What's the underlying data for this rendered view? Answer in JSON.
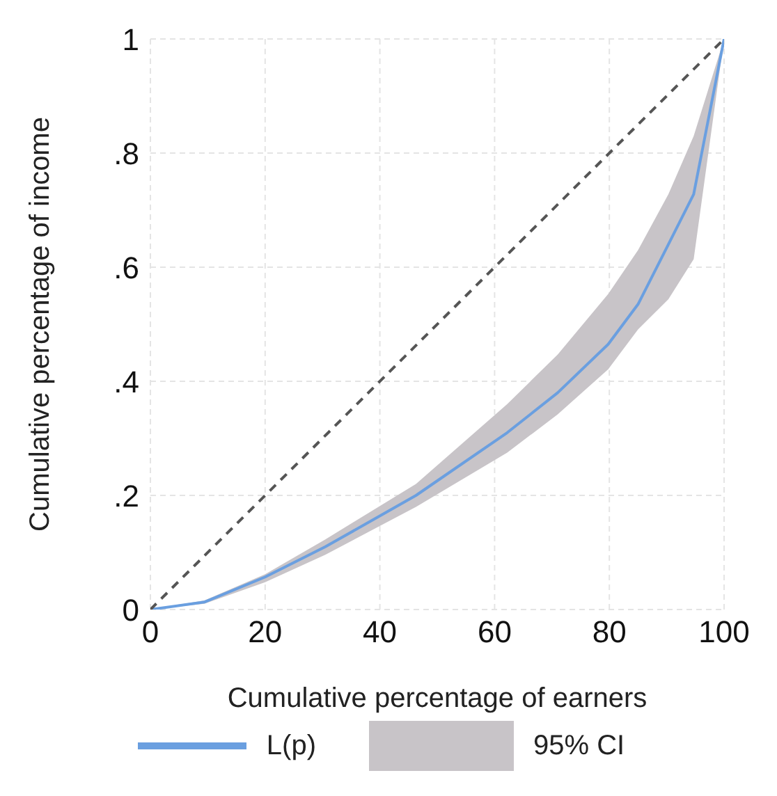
{
  "chart_data": {
    "type": "line",
    "xlabel": "Cumulative percentage of earners",
    "ylabel": "Cumulative percentage of income",
    "xlim": [
      0,
      100
    ],
    "xticks": [
      0,
      20,
      40,
      60,
      80,
      100
    ],
    "ylim": [
      0,
      1
    ],
    "yticks": [
      0,
      {
        "value": 0.2,
        "label": ".2"
      },
      {
        "value": 0.4,
        "label": ".4"
      },
      {
        "value": 0.6,
        "label": ".6"
      },
      {
        "value": 0.8,
        "label": ".8"
      },
      1
    ],
    "grid": true,
    "legend": "bottom",
    "annotations": [
      "95% CI"
    ],
    "series": [
      {
        "name": "L(p)",
        "color": "#6a9fe0",
        "x": [
          0,
          9.4,
          20,
          30.5,
          46.3,
          62.2,
          71,
          79.8,
          85,
          90.3,
          94.7,
          100
        ],
        "values": [
          0,
          0.013,
          0.057,
          0.11,
          0.2,
          0.31,
          0.38,
          0.465,
          0.535,
          0.64,
          0.728,
          1
        ],
        "lower": [
          0,
          0.01,
          0.048,
          0.096,
          0.18,
          0.275,
          0.342,
          0.421,
          0.491,
          0.544,
          0.614,
          1
        ],
        "upper": [
          0,
          0.016,
          0.062,
          0.123,
          0.22,
          0.36,
          0.447,
          0.553,
          0.63,
          0.728,
          0.83,
          1
        ]
      },
      {
        "color": "#555555",
        "line_style": "dashed",
        "x": [
          0,
          100
        ],
        "values": [
          0,
          1
        ]
      }
    ]
  }
}
